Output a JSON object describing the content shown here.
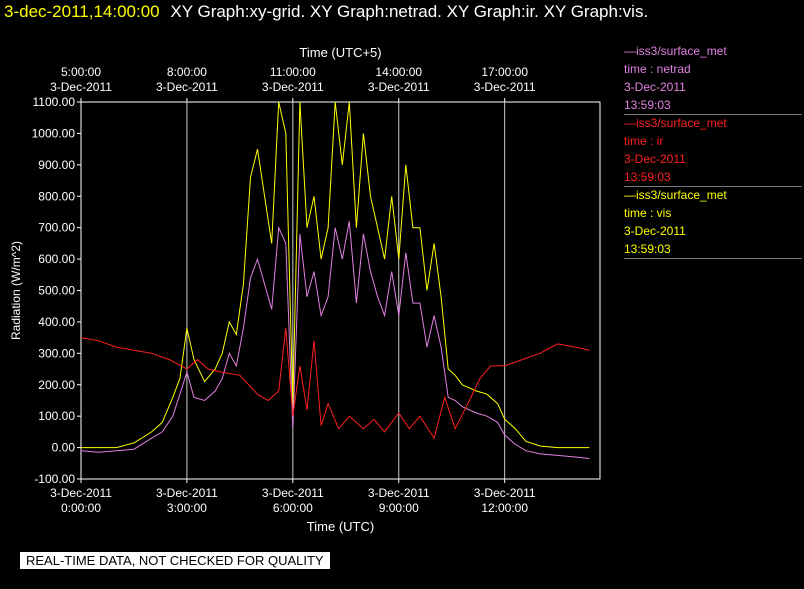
{
  "header": {
    "timestamp": "3-dec-2011,14:00:00",
    "titles": "XY Graph:xy-grid.  XY Graph:netrad.  XY Graph:ir.  XY Graph:vis."
  },
  "legend": [
    {
      "line1": "—iss3/surface_met",
      "line2": "time : netrad",
      "line3": "3-Dec-2011",
      "line4": "13:59:03"
    },
    {
      "line1": "—iss3/surface_met",
      "line2": "time : ir",
      "line3": "3-Dec-2011",
      "line4": "13:59:03"
    },
    {
      "line1": "—iss3/surface_met",
      "line2": "time : vis",
      "line3": "3-Dec-2011",
      "line4": "13:59:03"
    }
  ],
  "banner": "REAL-TIME DATA, NOT CHECKED FOR QUALITY",
  "colors": {
    "netrad": "#e080e0",
    "ir": "#ff2020",
    "vis": "#ffff00",
    "grid": "#ffffff",
    "background": "#000000"
  },
  "chart_data": {
    "type": "line",
    "ylabel": "Radiation (W/m^2)",
    "xlabel": "Time (UTC)",
    "x2label": "Time (UTC+5)",
    "ylim": [
      -100,
      1100
    ],
    "xlim": [
      0,
      14.7
    ],
    "yticks": [
      "-100.00",
      "0.00",
      "100.00",
      "200.00",
      "300.00",
      "400.00",
      "500.00",
      "600.00",
      "700.00",
      "800.00",
      "900.00",
      "1000.00",
      "1100.00"
    ],
    "xticks_bottom": [
      {
        "date": "3-Dec-2011",
        "time": "0:00:00"
      },
      {
        "date": "3-Dec-2011",
        "time": "3:00:00"
      },
      {
        "date": "3-Dec-2011",
        "time": "6:00:00"
      },
      {
        "date": "3-Dec-2011",
        "time": "9:00:00"
      },
      {
        "date": "3-Dec-2011",
        "time": "12:00:00"
      }
    ],
    "xticks_top": [
      {
        "time": "5:00:00",
        "date": "3-Dec-2011"
      },
      {
        "time": "8:00:00",
        "date": "3-Dec-2011"
      },
      {
        "time": "11:00:00",
        "date": "3-Dec-2011"
      },
      {
        "time": "14:00:00",
        "date": "3-Dec-2011"
      },
      {
        "time": "17:00:00",
        "date": "3-Dec-2011"
      }
    ],
    "grid": true,
    "series": [
      {
        "name": "vis",
        "x": [
          0,
          0.5,
          1,
          1.5,
          2,
          2.3,
          2.6,
          2.8,
          3.0,
          3.2,
          3.5,
          3.8,
          4.0,
          4.2,
          4.4,
          4.6,
          4.8,
          5.0,
          5.2,
          5.4,
          5.6,
          5.8,
          6.0,
          6.2,
          6.4,
          6.6,
          6.8,
          7.0,
          7.2,
          7.4,
          7.6,
          7.8,
          8.0,
          8.2,
          8.4,
          8.6,
          8.8,
          9.0,
          9.2,
          9.4,
          9.6,
          9.8,
          10.0,
          10.2,
          10.4,
          10.6,
          10.8,
          11.0,
          11.2,
          11.5,
          11.8,
          12.0,
          12.3,
          12.6,
          13.0,
          13.5,
          14.0,
          14.4
        ],
        "values": [
          0,
          0,
          0,
          15,
          50,
          80,
          160,
          220,
          380,
          280,
          210,
          250,
          300,
          400,
          360,
          520,
          860,
          950,
          800,
          650,
          1100,
          1000,
          140,
          1100,
          700,
          800,
          600,
          700,
          1100,
          900,
          1100,
          700,
          1000,
          800,
          700,
          600,
          800,
          600,
          900,
          700,
          700,
          500,
          650,
          480,
          250,
          230,
          200,
          190,
          180,
          170,
          140,
          90,
          60,
          20,
          5,
          0,
          0,
          0
        ]
      },
      {
        "name": "netrad",
        "x": [
          0,
          0.5,
          1,
          1.5,
          2,
          2.3,
          2.6,
          2.8,
          3.0,
          3.2,
          3.5,
          3.8,
          4.0,
          4.2,
          4.4,
          4.6,
          4.8,
          5.0,
          5.2,
          5.4,
          5.6,
          5.8,
          6.0,
          6.2,
          6.4,
          6.6,
          6.8,
          7.0,
          7.2,
          7.4,
          7.6,
          7.8,
          8.0,
          8.2,
          8.4,
          8.6,
          8.8,
          9.0,
          9.2,
          9.4,
          9.6,
          9.8,
          10.0,
          10.2,
          10.4,
          10.6,
          10.8,
          11.0,
          11.2,
          11.5,
          11.8,
          12.0,
          12.3,
          12.6,
          13.0,
          13.5,
          14.0,
          14.4
        ],
        "values": [
          -10,
          -15,
          -10,
          -5,
          30,
          50,
          100,
          170,
          240,
          160,
          150,
          180,
          220,
          300,
          260,
          380,
          540,
          600,
          520,
          440,
          700,
          650,
          60,
          680,
          480,
          560,
          420,
          480,
          700,
          600,
          720,
          460,
          680,
          560,
          480,
          420,
          560,
          420,
          620,
          460,
          460,
          320,
          420,
          320,
          160,
          150,
          130,
          120,
          110,
          100,
          80,
          40,
          10,
          -10,
          -20,
          -25,
          -30,
          -35
        ]
      },
      {
        "name": "ir",
        "x": [
          0,
          0.5,
          1,
          1.5,
          2,
          2.5,
          3.0,
          3.3,
          3.6,
          4.0,
          4.5,
          5.0,
          5.3,
          5.6,
          5.8,
          6.0,
          6.2,
          6.4,
          6.6,
          6.8,
          7.0,
          7.3,
          7.6,
          8.0,
          8.3,
          8.6,
          9.0,
          9.3,
          9.6,
          10.0,
          10.3,
          10.6,
          11.0,
          11.3,
          11.6,
          12.0,
          12.5,
          13.0,
          13.5,
          14.0,
          14.4
        ],
        "values": [
          350,
          340,
          320,
          310,
          300,
          280,
          250,
          280,
          250,
          240,
          230,
          170,
          150,
          180,
          380,
          100,
          260,
          120,
          340,
          70,
          140,
          60,
          100,
          60,
          90,
          50,
          110,
          60,
          100,
          30,
          160,
          60,
          150,
          220,
          260,
          260,
          280,
          300,
          330,
          320,
          310
        ]
      }
    ]
  }
}
